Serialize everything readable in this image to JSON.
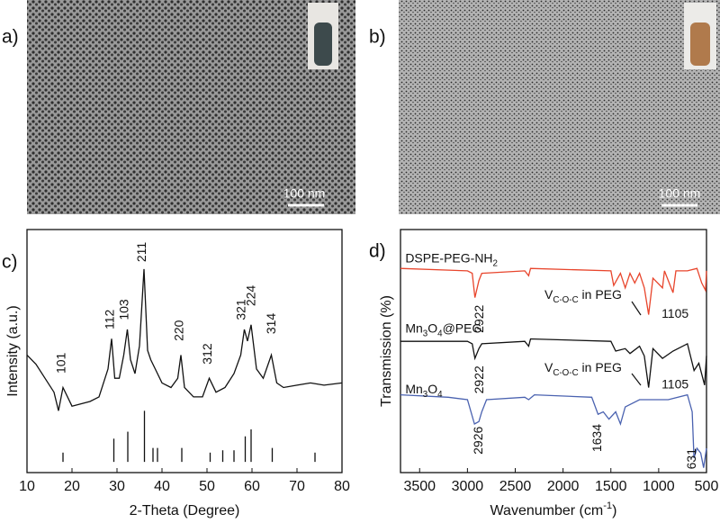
{
  "panels": [
    {
      "label": "a)",
      "scale_bar": "100 nm"
    },
    {
      "label": "b)",
      "scale_bar": "100 nm"
    }
  ],
  "chart_data": [
    {
      "type": "line",
      "label": "c)",
      "xlabel": "2-Theta (Degree)",
      "ylabel": "Intensity (a.u.)",
      "xlim": [
        10,
        80
      ],
      "ylim": [
        -4.6,
        100
      ],
      "xticks": [
        10,
        20,
        30,
        40,
        50,
        60,
        70,
        80
      ],
      "series": [
        {
          "color": "#111111",
          "x": [
            10,
            12,
            14,
            16,
            17,
            18,
            20,
            22,
            24,
            26,
            28,
            28.8,
            29.5,
            30.5,
            31.5,
            32.3,
            33,
            34,
            35,
            36,
            36.8,
            37.5,
            38.5,
            40,
            42,
            43.5,
            44.2,
            45,
            47,
            49,
            50.5,
            52,
            54,
            56,
            57.5,
            58.3,
            59,
            59.8,
            61,
            62.5,
            64.3,
            65.5,
            67,
            70,
            73,
            76,
            80
          ],
          "values": [
            46,
            42,
            36,
            30,
            22,
            32,
            24,
            25,
            26,
            28,
            40,
            53,
            36,
            36,
            46,
            57,
            44,
            38,
            50,
            83,
            48,
            44,
            40,
            34,
            32,
            36,
            46,
            32,
            28,
            28,
            36,
            30,
            32,
            38,
            46,
            57,
            52,
            59,
            40,
            36,
            46,
            34,
            32,
            33,
            34,
            33,
            34
          ]
        }
      ],
      "reference": {
        "color": "#111111",
        "x": [
          18,
          29.3,
          32.4,
          36.1,
          38,
          39,
          44.4,
          50.7,
          53.5,
          56,
          58.5,
          59.8,
          64.5,
          74
        ],
        "values": [
          4,
          10,
          13,
          22,
          6,
          6,
          6,
          4,
          5,
          5,
          11,
          14,
          6,
          4
        ]
      },
      "annotations": [
        {
          "text": "101",
          "x": 17.8,
          "y": 38
        },
        {
          "text": "112",
          "x": 28.6,
          "y": 57
        },
        {
          "text": "103",
          "x": 31.8,
          "y": 61
        },
        {
          "text": "211",
          "x": 35.7,
          "y": 86
        },
        {
          "text": "220",
          "x": 44,
          "y": 52
        },
        {
          "text": "312",
          "x": 50.3,
          "y": 42
        },
        {
          "text": "321",
          "x": 57.8,
          "y": 61
        },
        {
          "text": "224",
          "x": 60,
          "y": 67
        },
        {
          "text": "314",
          "x": 64.5,
          "y": 55
        }
      ]
    },
    {
      "type": "line",
      "label": "d)",
      "xlabel_parts": [
        {
          "text": "Wavenumber (cm"
        },
        {
          "text": "-1",
          "sup": true
        },
        {
          "text": ")"
        }
      ],
      "ylabel": "Transmission (%)",
      "xlim": [
        3700,
        500
      ],
      "ylim": [
        0,
        100
      ],
      "xticks": [
        3500,
        3000,
        2500,
        2000,
        1500,
        1000,
        500
      ],
      "series": [
        {
          "color": "#e8452c",
          "x": [
            3700,
            3000,
            2950,
            2922,
            2880,
            2850,
            2400,
            2360,
            2340,
            1500,
            1470,
            1400,
            1350,
            1300,
            1250,
            1200,
            1150,
            1105,
            1060,
            960,
            940,
            850,
            820,
            700,
            600,
            550,
            510,
            500
          ],
          "values": [
            84,
            83,
            82,
            72,
            79,
            82,
            83,
            81,
            84,
            83,
            77,
            82,
            76,
            82,
            78,
            82,
            76,
            65,
            80,
            76,
            83,
            74,
            83,
            83,
            84,
            78,
            75,
            83
          ]
        },
        {
          "color": "#111111",
          "x": [
            3700,
            3000,
            2950,
            2922,
            2880,
            2850,
            2400,
            2360,
            2340,
            1500,
            1450,
            1350,
            1300,
            1200,
            1150,
            1105,
            1060,
            960,
            850,
            700,
            630,
            580,
            520,
            500
          ],
          "values": [
            54,
            54,
            53,
            47,
            51,
            53,
            54,
            52,
            55,
            54,
            50,
            51,
            49,
            52,
            48,
            35,
            51,
            47,
            50,
            53,
            42,
            45,
            36,
            48
          ]
        },
        {
          "color": "#4a62b0",
          "x": [
            3700,
            3200,
            3000,
            2926,
            2880,
            2850,
            2800,
            2400,
            2360,
            2300,
            1700,
            1634,
            1580,
            1520,
            1450,
            1400,
            1350,
            1200,
            900,
            700,
            650,
            631,
            600,
            560,
            530,
            500
          ],
          "values": [
            32,
            31,
            30,
            20,
            21,
            25,
            30,
            31,
            30,
            32,
            31,
            24,
            25,
            22,
            25,
            20,
            27,
            30,
            30,
            32,
            25,
            6,
            10,
            8,
            2,
            10
          ]
        }
      ],
      "annotations": [
        {
          "parts": [
            {
              "text": "DSPE-PEG-NH"
            },
            {
              "text": "2",
              "sub": true
            }
          ],
          "x": 3650,
          "y": 88
        },
        {
          "parts": [
            {
              "text": "Mn"
            },
            {
              "text": "3",
              "sub": true
            },
            {
              "text": "O"
            },
            {
              "text": "4",
              "sub": true
            },
            {
              "text": "@PEG"
            }
          ],
          "x": 3650,
          "y": 59
        },
        {
          "parts": [
            {
              "text": "Mn"
            },
            {
              "text": "3",
              "sub": true
            },
            {
              "text": "O"
            },
            {
              "text": "4",
              "sub": true
            }
          ],
          "x": 3650,
          "y": 34
        },
        {
          "parts": [
            {
              "text": "V"
            },
            {
              "text": "C-O-C",
              "sub": true
            },
            {
              "text": " in PEG"
            }
          ],
          "x": 2194,
          "y": 73
        },
        {
          "parts": [
            {
              "text": "V"
            },
            {
              "text": "C-O-C",
              "sub": true
            },
            {
              "text": " in PEG"
            }
          ],
          "x": 2194,
          "y": 43
        },
        {
          "text": "1105",
          "x": 970,
          "y": 65
        },
        {
          "text": "1105",
          "x": 970,
          "y": 36
        },
        {
          "text": "2922",
          "x": 2870,
          "y": 69,
          "rotate": true
        },
        {
          "text": "2922",
          "x": 2870,
          "y": 44,
          "rotate": true
        },
        {
          "text": "2926",
          "x": 2880,
          "y": 19,
          "rotate": true
        },
        {
          "text": "1634",
          "x": 1634,
          "y": 20,
          "rotate": true
        },
        {
          "text": "631",
          "x": 650,
          "y": 10,
          "rotate": true
        }
      ]
    }
  ]
}
